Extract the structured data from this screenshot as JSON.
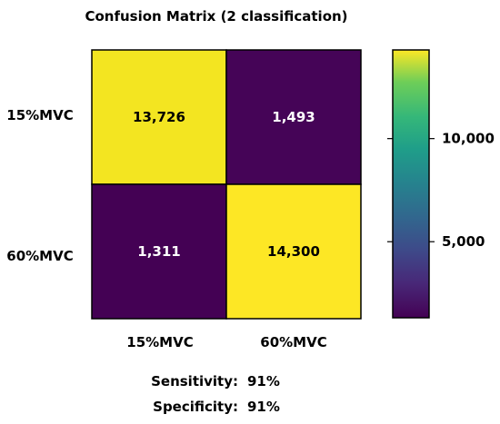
{
  "chart_data": {
    "type": "heatmap",
    "title": "Confusion Matrix (2 classification)",
    "row_labels": [
      "15%MVC",
      "60%MVC"
    ],
    "col_labels": [
      "15%MVC",
      "60%MVC"
    ],
    "values": [
      [
        13726,
        1493
      ],
      [
        1311,
        14300
      ]
    ],
    "value_labels": [
      [
        "13,726",
        "1,493"
      ],
      [
        "1,311",
        "14,300"
      ]
    ],
    "colormap": "viridis",
    "colorbar": {
      "range": [
        1311,
        14300
      ],
      "ticks": [
        5000,
        10000
      ],
      "tick_labels": [
        "5,000",
        "10,000"
      ]
    },
    "colors": {
      "high": "#fde725",
      "mid": "#21918c",
      "low": "#440154",
      "high_text": "#000000",
      "low_text": "#ffffff"
    }
  },
  "metrics": {
    "sensitivity_label": "Sensitivity:",
    "sensitivity_value": "91%",
    "specificity_label": "Specificity:",
    "specificity_value": "91%"
  }
}
